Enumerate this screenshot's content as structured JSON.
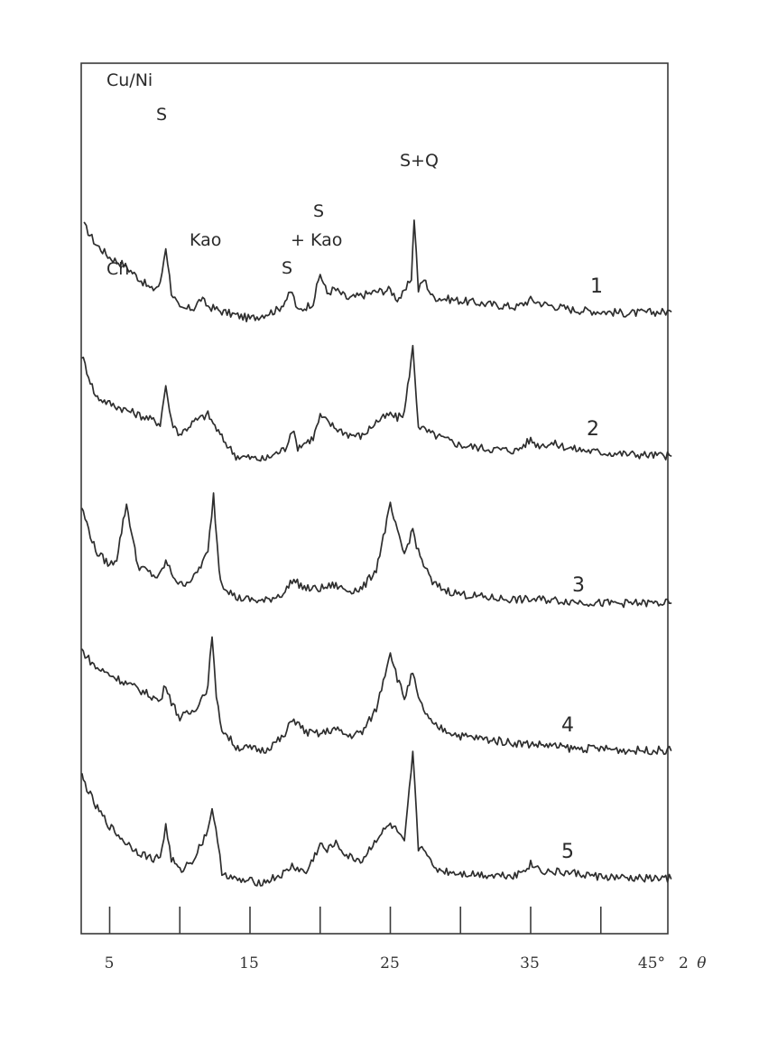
{
  "chart_data": {
    "type": "line",
    "x_axis": {
      "ticks": [
        5,
        10,
        15,
        20,
        25,
        30,
        35,
        40,
        45
      ],
      "tick_labels": [
        "5",
        "15",
        "25",
        "35",
        "45°"
      ],
      "unit_label": "2",
      "unit_symbol": "θ",
      "xlim": [
        3,
        45
      ]
    },
    "y_axis": {
      "ticks": false,
      "labels": false
    },
    "grid": false,
    "series": [
      {
        "name": "1",
        "baseline": 0,
        "points": [
          [
            3.2,
            95
          ],
          [
            4.0,
            75
          ],
          [
            5.0,
            60
          ],
          [
            6.0,
            52
          ],
          [
            7.0,
            38
          ],
          [
            8.0,
            24
          ],
          [
            8.6,
            30
          ],
          [
            9.0,
            72
          ],
          [
            9.4,
            22
          ],
          [
            10.0,
            2
          ],
          [
            11.0,
            4
          ],
          [
            11.5,
            14
          ],
          [
            12.0,
            6
          ],
          [
            13.0,
            0
          ],
          [
            15.0,
            -8
          ],
          [
            17.0,
            2
          ],
          [
            18.0,
            22
          ],
          [
            18.4,
            0
          ],
          [
            19.5,
            10
          ],
          [
            20.0,
            42
          ],
          [
            20.5,
            20
          ],
          [
            21.0,
            25
          ],
          [
            22.0,
            14
          ],
          [
            23.0,
            18
          ],
          [
            24.0,
            22
          ],
          [
            25.0,
            24
          ],
          [
            25.5,
            14
          ],
          [
            26.0,
            20
          ],
          [
            26.5,
            38
          ],
          [
            26.7,
            104
          ],
          [
            27.0,
            24
          ],
          [
            27.4,
            36
          ],
          [
            28.0,
            16
          ],
          [
            30.0,
            12
          ],
          [
            32.0,
            8
          ],
          [
            34.0,
            5
          ],
          [
            35.0,
            13
          ],
          [
            36.0,
            8
          ],
          [
            38.0,
            2
          ],
          [
            40.0,
            0
          ],
          [
            42.0,
            -2
          ],
          [
            45.0,
            0
          ]
        ],
        "peak_labels": [
          "Cu/Ni",
          "S",
          "Kao",
          "S",
          "S",
          "+ Kao",
          "S+Q"
        ]
      },
      {
        "name": "2",
        "baseline": 0,
        "points": [
          [
            3.0,
            112
          ],
          [
            4.0,
            66
          ],
          [
            5.0,
            58
          ],
          [
            6.0,
            52
          ],
          [
            7.0,
            46
          ],
          [
            8.0,
            40
          ],
          [
            8.6,
            36
          ],
          [
            9.0,
            78
          ],
          [
            9.4,
            38
          ],
          [
            10.0,
            24
          ],
          [
            11.0,
            38
          ],
          [
            12.0,
            46
          ],
          [
            13.0,
            20
          ],
          [
            14.0,
            0
          ],
          [
            16.0,
            -4
          ],
          [
            17.5,
            8
          ],
          [
            18.0,
            30
          ],
          [
            18.4,
            10
          ],
          [
            19.5,
            20
          ],
          [
            20.0,
            44
          ],
          [
            21.0,
            32
          ],
          [
            22.0,
            24
          ],
          [
            23.0,
            22
          ],
          [
            24.0,
            38
          ],
          [
            25.0,
            46
          ],
          [
            25.5,
            42
          ],
          [
            26.0,
            48
          ],
          [
            26.6,
            120
          ],
          [
            27.0,
            34
          ],
          [
            27.5,
            28
          ],
          [
            28.0,
            24
          ],
          [
            30.0,
            12
          ],
          [
            32.0,
            8
          ],
          [
            34.0,
            6
          ],
          [
            35.0,
            18
          ],
          [
            35.5,
            12
          ],
          [
            36.5,
            14
          ],
          [
            38.0,
            8
          ],
          [
            40.0,
            4
          ],
          [
            42.0,
            2
          ],
          [
            45.0,
            0
          ]
        ],
        "peak_labels": [
          "Ch"
        ]
      },
      {
        "name": "3",
        "baseline": 0,
        "points": [
          [
            3.0,
            108
          ],
          [
            4.0,
            60
          ],
          [
            5.0,
            44
          ],
          [
            5.5,
            52
          ],
          [
            6.2,
            112
          ],
          [
            6.8,
            60
          ],
          [
            7.0,
            44
          ],
          [
            8.0,
            34
          ],
          [
            8.5,
            30
          ],
          [
            9.0,
            48
          ],
          [
            9.4,
            36
          ],
          [
            10.0,
            22
          ],
          [
            11.0,
            30
          ],
          [
            12.0,
            58
          ],
          [
            12.4,
            122
          ],
          [
            12.8,
            40
          ],
          [
            13.0,
            24
          ],
          [
            14.0,
            8
          ],
          [
            16.0,
            4
          ],
          [
            17.5,
            14
          ],
          [
            18.0,
            28
          ],
          [
            19.0,
            18
          ],
          [
            20.0,
            18
          ],
          [
            21.0,
            22
          ],
          [
            22.0,
            16
          ],
          [
            23.0,
            18
          ],
          [
            24.0,
            40
          ],
          [
            25.0,
            110
          ],
          [
            25.5,
            80
          ],
          [
            26.0,
            56
          ],
          [
            26.6,
            84
          ],
          [
            27.0,
            58
          ],
          [
            28.0,
            24
          ],
          [
            29.0,
            16
          ],
          [
            30.0,
            12
          ],
          [
            32.0,
            8
          ],
          [
            34.0,
            6
          ],
          [
            36.0,
            6
          ],
          [
            38.0,
            4
          ],
          [
            40.0,
            2
          ],
          [
            42.0,
            2
          ],
          [
            45.0,
            2
          ]
        ]
      },
      {
        "name": "4",
        "baseline": 0,
        "points": [
          [
            3.0,
            115
          ],
          [
            4.0,
            96
          ],
          [
            5.0,
            88
          ],
          [
            6.0,
            80
          ],
          [
            7.0,
            72
          ],
          [
            8.0,
            64
          ],
          [
            8.6,
            58
          ],
          [
            9.0,
            78
          ],
          [
            9.4,
            58
          ],
          [
            10.0,
            40
          ],
          [
            11.0,
            48
          ],
          [
            12.0,
            74
          ],
          [
            12.3,
            134
          ],
          [
            12.6,
            60
          ],
          [
            13.0,
            28
          ],
          [
            14.0,
            8
          ],
          [
            16.0,
            4
          ],
          [
            17.5,
            20
          ],
          [
            18.0,
            40
          ],
          [
            19.0,
            24
          ],
          [
            20.0,
            22
          ],
          [
            21.0,
            28
          ],
          [
            22.0,
            20
          ],
          [
            23.0,
            24
          ],
          [
            24.0,
            50
          ],
          [
            25.0,
            114
          ],
          [
            25.5,
            84
          ],
          [
            26.0,
            62
          ],
          [
            26.6,
            90
          ],
          [
            27.0,
            60
          ],
          [
            28.0,
            32
          ],
          [
            29.0,
            26
          ],
          [
            30.0,
            20
          ],
          [
            32.0,
            16
          ],
          [
            34.0,
            12
          ],
          [
            36.0,
            10
          ],
          [
            38.0,
            6
          ],
          [
            40.0,
            6
          ],
          [
            42.0,
            4
          ],
          [
            45.0,
            4
          ]
        ]
      },
      {
        "name": "5",
        "baseline": 0,
        "points": [
          [
            3.0,
            115
          ],
          [
            4.0,
            82
          ],
          [
            5.0,
            60
          ],
          [
            6.0,
            44
          ],
          [
            7.0,
            32
          ],
          [
            8.0,
            24
          ],
          [
            8.6,
            26
          ],
          [
            9.0,
            60
          ],
          [
            9.4,
            24
          ],
          [
            10.0,
            10
          ],
          [
            11.0,
            24
          ],
          [
            12.0,
            56
          ],
          [
            12.3,
            82
          ],
          [
            12.7,
            40
          ],
          [
            13.0,
            10
          ],
          [
            14.0,
            0
          ],
          [
            16.0,
            -2
          ],
          [
            17.5,
            8
          ],
          [
            18.0,
            16
          ],
          [
            19.0,
            8
          ],
          [
            20.0,
            40
          ],
          [
            20.5,
            32
          ],
          [
            21.0,
            42
          ],
          [
            22.0,
            26
          ],
          [
            23.0,
            22
          ],
          [
            24.0,
            46
          ],
          [
            25.0,
            62
          ],
          [
            25.5,
            54
          ],
          [
            26.0,
            40
          ],
          [
            26.6,
            140
          ],
          [
            27.0,
            36
          ],
          [
            27.5,
            36
          ],
          [
            28.0,
            14
          ],
          [
            29.0,
            10
          ],
          [
            30.0,
            8
          ],
          [
            32.0,
            6
          ],
          [
            34.0,
            6
          ],
          [
            35.0,
            18
          ],
          [
            36.0,
            10
          ],
          [
            38.0,
            8
          ],
          [
            40.0,
            4
          ],
          [
            42.0,
            2
          ],
          [
            45.0,
            2
          ]
        ]
      }
    ]
  }
}
